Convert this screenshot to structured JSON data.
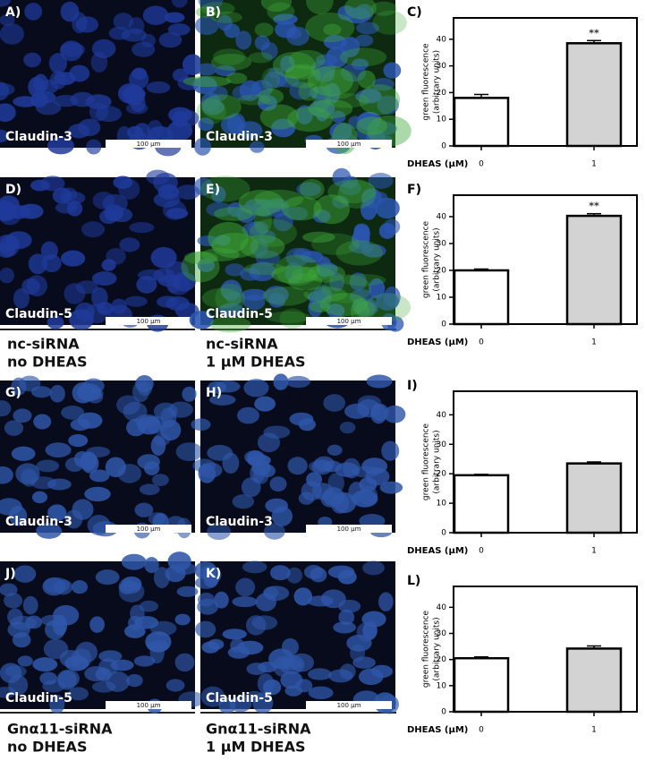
{
  "panels": [
    {
      "letter": "A)",
      "stain": "Claudin-3",
      "scale": "100 µm"
    },
    {
      "letter": "B)",
      "stain": "Claudin-3",
      "scale": "100 µm"
    },
    {
      "letter": "D)",
      "stain": "Claudin-5",
      "scale": "100 µm"
    },
    {
      "letter": "E)",
      "stain": "Claudin-5",
      "scale": "100 µm"
    },
    {
      "letter": "G)",
      "stain": "Claudin-3",
      "scale": "100 µm"
    },
    {
      "letter": "H)",
      "stain": "Claudin-3",
      "scale": "100 µm"
    },
    {
      "letter": "J)",
      "stain": "Claudin-5",
      "scale": "100 µm"
    },
    {
      "letter": "K)",
      "stain": "Claudin-5",
      "scale": "100 µm"
    }
  ],
  "conditions": [
    {
      "lines": [
        "nc-siRNA",
        "no DHEAS"
      ]
    },
    {
      "lines": [
        "nc-siRNA",
        "1 µM DHEAS"
      ]
    },
    {
      "lines": [
        "Gnα11-siRNA",
        "no DHEAS"
      ]
    },
    {
      "lines": [
        "Gnα11-siRNA",
        "1 µM DHEAS"
      ]
    }
  ],
  "chart_data": [
    {
      "type": "bar",
      "letter": "C)",
      "y_label": [
        "green fluorescence",
        "(arbitrary units)"
      ],
      "x_label": "DHEAS (µM)",
      "categories": [
        "0",
        "1"
      ],
      "values": [
        18,
        38.5
      ],
      "errors": [
        1.3,
        1
      ],
      "colors": [
        "#ffffff",
        "#d3d3d3"
      ],
      "ylim": [
        0,
        48
      ],
      "yticks": [
        0,
        10,
        20,
        30,
        40
      ],
      "significance": [
        null,
        "**"
      ]
    },
    {
      "type": "bar",
      "letter": "F)",
      "y_label": [
        "green fluorescence",
        "(arbitrary units)"
      ],
      "x_label": "DHEAS (µM)",
      "categories": [
        "0",
        "1"
      ],
      "values": [
        20,
        40.3
      ],
      "errors": [
        0.5,
        0.8
      ],
      "colors": [
        "#ffffff",
        "#d3d3d3"
      ],
      "ylim": [
        0,
        48
      ],
      "yticks": [
        0,
        10,
        20,
        30,
        40
      ],
      "significance": [
        null,
        "**"
      ]
    },
    {
      "type": "bar",
      "letter": "I)",
      "y_label": [
        "green fluorescence",
        "(arbitrary units)"
      ],
      "x_label": "DHEAS (µM)",
      "categories": [
        "0",
        "1"
      ],
      "values": [
        19.5,
        23.5
      ],
      "errors": [
        0.3,
        0.5
      ],
      "colors": [
        "#ffffff",
        "#d3d3d3"
      ],
      "ylim": [
        0,
        48
      ],
      "yticks": [
        0,
        10,
        20,
        30,
        40
      ]
    },
    {
      "type": "bar",
      "letter": "L)",
      "y_label": [
        "green fluorescence",
        "(arbitrary units)"
      ],
      "x_label": "DHEAS (µM)",
      "categories": [
        "0",
        "1"
      ],
      "values": [
        20.5,
        24.2
      ],
      "errors": [
        0.5,
        1
      ],
      "colors": [
        "#ffffff",
        "#d3d3d3"
      ],
      "ylim": [
        0,
        48
      ],
      "yticks": [
        0,
        10,
        20,
        30,
        40
      ]
    }
  ]
}
